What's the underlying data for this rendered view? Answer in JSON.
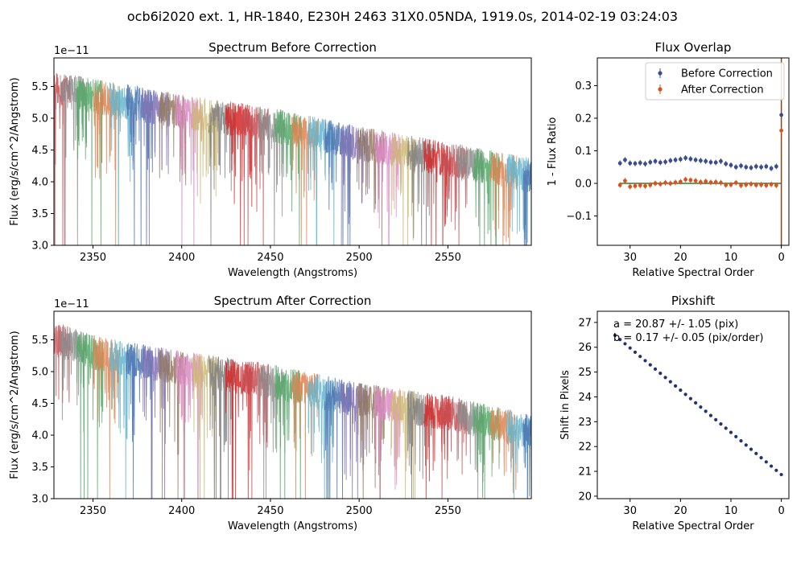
{
  "figure": {
    "title": "ocb6i2020 ext. 1, HR-1840, E230H 2463 31X0.05NDA, 1919.0s, 2014-02-19 03:24:03"
  },
  "chart_data": [
    {
      "id": "before",
      "type": "line",
      "title": "Spectrum Before Correction",
      "xlabel": "Wavelength (Angstroms)",
      "ylabel": "Flux (erg/s/cm^2/Angstrom)",
      "y_multiplier": "1e−11",
      "xlim": [
        2328,
        2597
      ],
      "ylim": [
        3.0,
        5.95
      ],
      "xticks": [
        2350,
        2400,
        2450,
        2500,
        2550
      ],
      "yticks": [
        3.0,
        3.5,
        4.0,
        4.5,
        5.0,
        5.5
      ],
      "order_count": 32,
      "continuum": {
        "x": [
          2330,
          2350,
          2400,
          2450,
          2500,
          2550,
          2597
        ],
        "y": [
          5.45,
          5.35,
          5.1,
          4.9,
          4.6,
          4.35,
          4.1
        ]
      }
    },
    {
      "id": "after",
      "type": "line",
      "title": "Spectrum After Correction",
      "xlabel": "Wavelength (Angstroms)",
      "ylabel": "Flux (erg/s/cm^2/Angstrom)",
      "y_multiplier": "1e−11",
      "xlim": [
        2328,
        2597
      ],
      "ylim": [
        3.0,
        5.95
      ],
      "xticks": [
        2350,
        2400,
        2450,
        2500,
        2550
      ],
      "yticks": [
        3.0,
        3.5,
        4.0,
        4.5,
        5.0,
        5.5
      ],
      "order_count": 32,
      "continuum": {
        "x": [
          2330,
          2350,
          2400,
          2450,
          2500,
          2550,
          2597
        ],
        "y": [
          5.5,
          5.3,
          5.05,
          4.85,
          4.55,
          4.35,
          4.05
        ]
      }
    },
    {
      "id": "overlap",
      "type": "scatter",
      "title": "Flux Overlap",
      "xlabel": "Relative Spectral Order",
      "ylabel": "1 - Flux Ratio",
      "xlim": [
        36.5,
        -1.5
      ],
      "ylim": [
        -0.19,
        0.385
      ],
      "xticks": [
        30,
        20,
        10,
        0
      ],
      "yticks": [
        -0.1,
        0.0,
        0.1,
        0.2,
        0.3
      ],
      "legend": {
        "placement": "top-right",
        "entries": [
          "Before Correction",
          "After Correction"
        ]
      },
      "series": [
        {
          "name": "Before Correction",
          "color": "#3a4d8f",
          "x": [
            32,
            31,
            30,
            29,
            28,
            27,
            26,
            25,
            24,
            23,
            22,
            21,
            20,
            19,
            18,
            17,
            16,
            15,
            14,
            13,
            12,
            11,
            10,
            9,
            8,
            7,
            6,
            5,
            4,
            3,
            2,
            1,
            0
          ],
          "y": [
            0.062,
            0.072,
            0.062,
            0.061,
            0.063,
            0.06,
            0.065,
            0.068,
            0.064,
            0.066,
            0.07,
            0.072,
            0.074,
            0.078,
            0.075,
            0.072,
            0.07,
            0.068,
            0.065,
            0.064,
            0.068,
            0.06,
            0.056,
            0.05,
            0.054,
            0.05,
            0.048,
            0.052,
            0.05,
            0.052,
            0.046,
            0.052,
            0.21
          ]
        },
        {
          "name": "After Correction",
          "color": "#d9531e",
          "x": [
            32,
            31,
            30,
            29,
            28,
            27,
            26,
            25,
            24,
            23,
            22,
            21,
            20,
            19,
            18,
            17,
            16,
            15,
            14,
            13,
            12,
            11,
            10,
            9,
            8,
            7,
            6,
            5,
            4,
            3,
            2,
            1,
            0
          ],
          "y": [
            -0.005,
            0.008,
            -0.01,
            -0.008,
            -0.006,
            -0.008,
            -0.005,
            0.0,
            -0.002,
            0.002,
            0.0,
            0.003,
            0.005,
            0.012,
            0.01,
            0.008,
            0.004,
            0.006,
            0.003,
            0.004,
            0.002,
            -0.005,
            -0.004,
            0.002,
            -0.006,
            -0.004,
            -0.002,
            -0.005,
            -0.004,
            -0.006,
            -0.003,
            -0.006,
            0.162
          ]
        }
      ],
      "reference_line": {
        "y": 0.0,
        "color": "#2f7d32"
      },
      "vertical_line": {
        "x": 0,
        "color": "#8b4513"
      }
    },
    {
      "id": "pixshift",
      "type": "scatter",
      "title": "Pixshift",
      "xlabel": "Relative Spectral Order",
      "ylabel": "Shift in Pixels",
      "xlim": [
        36.5,
        -1.5
      ],
      "ylim": [
        19.9,
        27.45
      ],
      "xticks": [
        30,
        20,
        10,
        0
      ],
      "yticks": [
        20,
        21,
        22,
        23,
        24,
        25,
        26,
        27
      ],
      "annotations": [
        "a = 20.87 +/- 1.05 (pix)",
        "b = 0.17 +/- 0.05 (pix/order)"
      ],
      "series": [
        {
          "name": "",
          "color": "#1f3470",
          "fit_a": 20.87,
          "fit_b": 0.17,
          "x_from": 33,
          "x_to": 0
        }
      ]
    }
  ]
}
